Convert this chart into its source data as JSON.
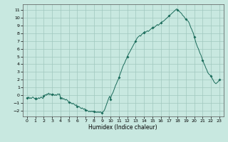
{
  "title": "",
  "xlabel": "Humidex (Indice chaleur)",
  "ylabel": "",
  "xlim": [
    -0.5,
    23.5
  ],
  "ylim": [
    -2.7,
    11.7
  ],
  "xticks": [
    0,
    1,
    2,
    3,
    4,
    5,
    6,
    7,
    8,
    9,
    10,
    11,
    12,
    13,
    14,
    15,
    16,
    17,
    18,
    19,
    20,
    21,
    22,
    23
  ],
  "yticks": [
    -2,
    -1,
    0,
    1,
    2,
    3,
    4,
    5,
    6,
    7,
    8,
    9,
    10,
    11
  ],
  "line_color": "#1a6b5a",
  "marker_color": "#1a6b5a",
  "bg_color": "#c8e8e0",
  "grid_color": "#a0c8be",
  "x": [
    0.0,
    0.1,
    0.2,
    0.3,
    0.4,
    0.5,
    0.6,
    0.7,
    0.8,
    0.9,
    1.0,
    1.1,
    1.2,
    1.3,
    1.4,
    1.5,
    1.6,
    1.7,
    1.8,
    1.9,
    2.0,
    2.1,
    2.2,
    2.3,
    2.4,
    2.5,
    2.6,
    2.7,
    2.8,
    2.9,
    3.0,
    3.1,
    3.2,
    3.3,
    3.4,
    3.5,
    3.6,
    3.7,
    3.8,
    3.9,
    4.0,
    4.1,
    4.2,
    4.3,
    4.4,
    4.5,
    4.6,
    4.7,
    4.8,
    4.9,
    5.0,
    5.1,
    5.2,
    5.3,
    5.4,
    5.5,
    5.6,
    5.7,
    5.8,
    5.9,
    6.0,
    6.1,
    6.2,
    6.3,
    6.4,
    6.5,
    6.6,
    6.7,
    6.8,
    6.9,
    7.0,
    7.1,
    7.2,
    7.3,
    7.4,
    7.5,
    7.6,
    7.7,
    7.8,
    7.9,
    8.0,
    8.1,
    8.2,
    8.3,
    8.4,
    8.5,
    8.6,
    8.7,
    8.8,
    8.9,
    9.0,
    9.1,
    9.2,
    9.3,
    9.4,
    9.5,
    9.6,
    9.7,
    9.8,
    9.9,
    10.0,
    10.1,
    10.2,
    10.3,
    10.4,
    10.5,
    10.6,
    10.7,
    10.8,
    10.9,
    11.0,
    11.1,
    11.2,
    11.3,
    11.4,
    11.5,
    11.6,
    11.7,
    11.8,
    11.9,
    12.0,
    12.1,
    12.2,
    12.3,
    12.4,
    12.5,
    12.6,
    12.7,
    12.8,
    12.9,
    13.0,
    13.1,
    13.2,
    13.3,
    13.4,
    13.5,
    13.6,
    13.7,
    13.8,
    13.9,
    14.0,
    14.1,
    14.2,
    14.3,
    14.4,
    14.5,
    14.6,
    14.7,
    14.8,
    14.9,
    15.0,
    15.1,
    15.2,
    15.3,
    15.4,
    15.5,
    15.6,
    15.7,
    15.8,
    15.9,
    16.0,
    16.1,
    16.2,
    16.3,
    16.4,
    16.5,
    16.6,
    16.7,
    16.8,
    16.9,
    17.0,
    17.1,
    17.2,
    17.3,
    17.4,
    17.5,
    17.6,
    17.7,
    17.8,
    17.9,
    18.0,
    18.1,
    18.2,
    18.3,
    18.4,
    18.5,
    18.6,
    18.7,
    18.8,
    18.9,
    19.0,
    19.1,
    19.2,
    19.3,
    19.4,
    19.5,
    19.6,
    19.7,
    19.8,
    19.9,
    20.0,
    20.1,
    20.2,
    20.3,
    20.4,
    20.5,
    20.6,
    20.7,
    20.8,
    20.9,
    21.0,
    21.1,
    21.2,
    21.3,
    21.4,
    21.5,
    21.6,
    21.7,
    21.8,
    21.9,
    22.0,
    22.1,
    22.2,
    22.3,
    22.4,
    22.5,
    22.6,
    22.7,
    22.8,
    22.9,
    23.0
  ],
  "y": [
    -0.3,
    -0.4,
    -0.2,
    -0.4,
    -0.3,
    -0.4,
    -0.3,
    -0.2,
    -0.3,
    -0.4,
    -0.4,
    -0.3,
    -0.5,
    -0.4,
    -0.3,
    -0.4,
    -0.3,
    -0.2,
    -0.3,
    -0.4,
    -0.1,
    0.0,
    0.1,
    0.0,
    0.2,
    0.1,
    0.3,
    0.1,
    0.2,
    0.1,
    0.1,
    0.2,
    0.1,
    0.0,
    0.1,
    0.0,
    0.1,
    0.2,
    0.1,
    0.2,
    -0.3,
    -0.4,
    -0.3,
    -0.5,
    -0.4,
    -0.5,
    -0.6,
    -0.5,
    -0.6,
    -0.7,
    -0.9,
    -1.0,
    -0.9,
    -1.0,
    -1.1,
    -1.0,
    -1.1,
    -1.2,
    -1.3,
    -1.2,
    -1.4,
    -1.5,
    -1.4,
    -1.5,
    -1.6,
    -1.7,
    -1.6,
    -1.7,
    -1.8,
    -1.7,
    -1.9,
    -2.0,
    -1.9,
    -2.0,
    -2.1,
    -2.0,
    -2.1,
    -2.0,
    -2.1,
    -2.0,
    -2.1,
    -2.2,
    -2.1,
    -2.2,
    -2.1,
    -2.2,
    -2.1,
    -2.2,
    -2.1,
    -2.2,
    -2.2,
    -2.1,
    -2.0,
    -1.8,
    -1.5,
    -1.2,
    -0.9,
    -0.6,
    -0.3,
    -0.1,
    -0.5,
    0.0,
    0.2,
    0.4,
    0.7,
    1.0,
    1.3,
    1.5,
    1.8,
    2.0,
    2.3,
    2.6,
    2.9,
    3.2,
    3.5,
    3.8,
    4.0,
    4.2,
    4.5,
    4.7,
    5.0,
    5.2,
    5.4,
    5.6,
    5.8,
    6.0,
    6.2,
    6.4,
    6.6,
    6.8,
    7.0,
    7.2,
    7.4,
    7.5,
    7.6,
    7.7,
    7.6,
    7.8,
    7.9,
    8.0,
    8.1,
    8.2,
    8.1,
    8.2,
    8.3,
    8.2,
    8.3,
    8.4,
    8.5,
    8.6,
    8.7,
    8.8,
    8.7,
    8.8,
    8.9,
    9.0,
    9.1,
    9.0,
    9.1,
    9.2,
    9.3,
    9.4,
    9.5,
    9.5,
    9.6,
    9.7,
    9.8,
    9.9,
    10.0,
    10.1,
    10.2,
    10.3,
    10.4,
    10.5,
    10.6,
    10.7,
    10.8,
    10.9,
    11.0,
    11.1,
    11.0,
    10.9,
    10.8,
    10.7,
    10.6,
    10.5,
    10.3,
    10.2,
    10.1,
    9.9,
    9.8,
    9.7,
    9.6,
    9.5,
    9.3,
    9.0,
    8.7,
    8.5,
    8.2,
    8.0,
    7.5,
    7.2,
    6.8,
    6.5,
    6.2,
    6.0,
    5.7,
    5.4,
    5.2,
    4.9,
    4.5,
    4.3,
    4.0,
    3.8,
    3.5,
    3.3,
    3.0,
    2.8,
    2.7,
    2.6,
    2.5,
    2.3,
    2.1,
    1.9,
    1.7,
    1.6,
    1.5,
    1.6,
    1.7,
    1.8,
    2.0
  ],
  "marker_x": [
    0,
    1,
    2,
    3,
    4,
    5,
    6,
    7,
    8,
    9,
    10,
    11,
    12,
    13,
    14,
    15,
    16,
    17,
    18,
    19,
    20,
    21,
    22,
    23
  ],
  "marker_y": [
    -0.3,
    -0.4,
    -0.1,
    0.1,
    -0.3,
    -0.9,
    -1.4,
    -1.9,
    -2.1,
    -2.2,
    -0.5,
    2.3,
    5.0,
    7.0,
    8.1,
    8.7,
    9.3,
    10.2,
    11.0,
    9.8,
    7.5,
    4.5,
    2.5,
    2.0
  ]
}
